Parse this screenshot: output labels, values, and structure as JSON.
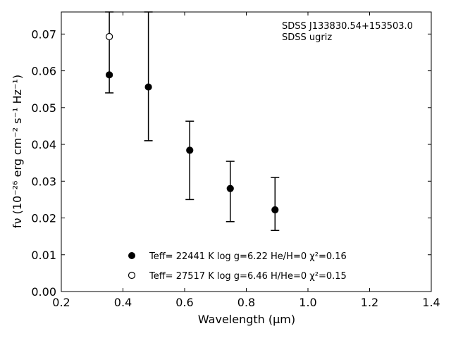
{
  "chart_data": {
    "type": "scatter",
    "xlabel": "Wavelength (μm)",
    "ylabel": "fν (10⁻²⁶ erg cm⁻² s⁻¹ Hz⁻¹)",
    "xlim": [
      0.2,
      1.4
    ],
    "ylim": [
      0.0,
      0.076
    ],
    "x_ticks": [
      "0.2",
      "0.4",
      "0.6",
      "0.8",
      "1.0",
      "1.2",
      "1.4"
    ],
    "y_ticks": [
      "0.00",
      "0.01",
      "0.02",
      "0.03",
      "0.04",
      "0.05",
      "0.06",
      "0.07"
    ],
    "annotation": [
      "SDSS J133830.54+153503.0",
      "SDSS ugriz"
    ],
    "legend_position": "bottom-center",
    "grid": false,
    "series": [
      {
        "name": "Teff= 22441 K  log g=6.22  He/H=0  χ²=0.16",
        "marker": "filled-circle",
        "points": [
          {
            "x": 0.3557,
            "y": 0.0589,
            "yerr_low": 0.054,
            "yerr_high": 0.076
          },
          {
            "x": 0.4825,
            "y": 0.0556,
            "yerr_low": 0.041,
            "yerr_high": 0.076
          },
          {
            "x": 0.6166,
            "y": 0.0384,
            "yerr_low": 0.025,
            "yerr_high": 0.0463
          },
          {
            "x": 0.748,
            "y": 0.028,
            "yerr_low": 0.019,
            "yerr_high": 0.0354
          },
          {
            "x": 0.8932,
            "y": 0.0222,
            "yerr_low": 0.0166,
            "yerr_high": 0.031
          }
        ]
      },
      {
        "name": "Teff= 27517 K  log g=6.46  H/He=0  χ²=0.15",
        "marker": "open-circle",
        "points": [
          {
            "x": 0.3557,
            "y": 0.0693
          }
        ]
      }
    ]
  }
}
